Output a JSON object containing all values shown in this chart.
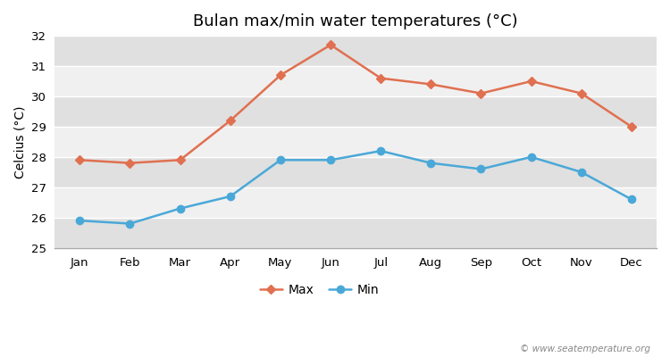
{
  "title": "Bulan max/min water temperatures (°C)",
  "ylabel": "Celcius (°C)",
  "months": [
    "Jan",
    "Feb",
    "Mar",
    "Apr",
    "May",
    "Jun",
    "Jul",
    "Aug",
    "Sep",
    "Oct",
    "Nov",
    "Dec"
  ],
  "max_temps": [
    27.9,
    27.8,
    27.9,
    29.2,
    30.7,
    31.7,
    30.6,
    30.4,
    30.1,
    30.5,
    30.1,
    29.0
  ],
  "min_temps": [
    25.9,
    25.8,
    26.3,
    26.7,
    27.9,
    27.9,
    28.2,
    27.8,
    27.6,
    28.0,
    27.5,
    26.6
  ],
  "max_color": "#e07050",
  "min_color": "#4aa8d8",
  "background_color": "#ffffff",
  "band_light": "#f0f0f0",
  "band_dark": "#e0e0e0",
  "ylim": [
    25,
    32
  ],
  "yticks": [
    25,
    26,
    27,
    28,
    29,
    30,
    31,
    32
  ],
  "legend_labels": [
    "Max",
    "Min"
  ],
  "watermark": "© www.seatemperature.org",
  "title_fontsize": 13,
  "label_fontsize": 10,
  "tick_fontsize": 9.5,
  "legend_fontsize": 10
}
